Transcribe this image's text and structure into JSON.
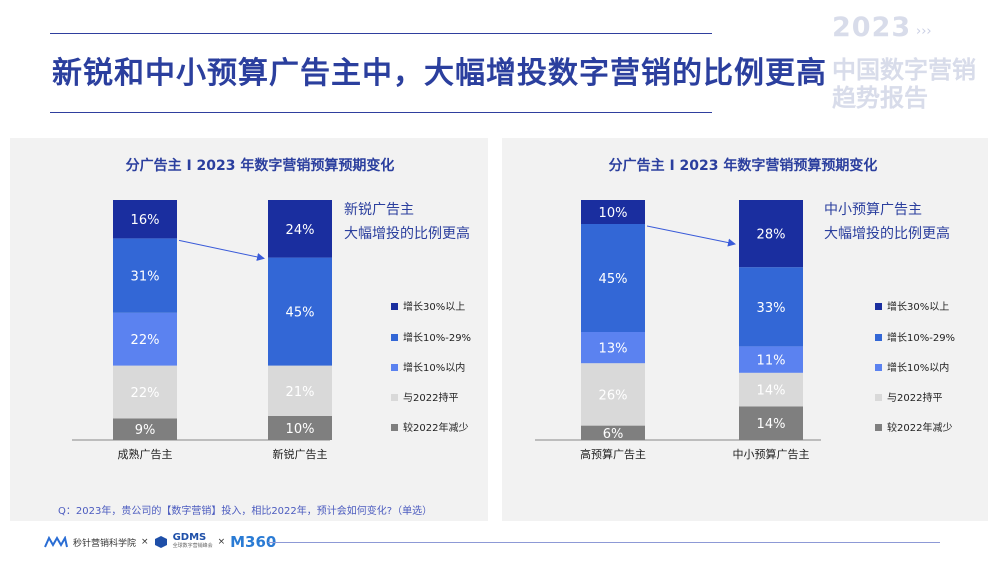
{
  "title": "新锐和中小预算广告主中，大幅增投数字营销的比例更高",
  "report": {
    "year": "2023",
    "arrows": "›››",
    "line1": "中国数字营销",
    "line2": "趋势报告"
  },
  "colors": {
    "grow30": "#1a2e9f",
    "grow10_29": "#3367d6",
    "grow_under10": "#5b82f0",
    "flat": "#d9d9d9",
    "decrease": "#7f7f7f",
    "title": "#2b3f9e",
    "arrow": "#3a5bd9"
  },
  "legend": {
    "labels": [
      "增长30%以上",
      "增长10%-29%",
      "增长10%以内",
      "与2022持平",
      "较2022年减少"
    ]
  },
  "chart_data": [
    {
      "type": "bar",
      "stacked": true,
      "title": "分广告主 I 2023 年数字营销预算预期变化",
      "categories": [
        "成熟广告主",
        "新锐广告主"
      ],
      "series": [
        {
          "name": "较2022年减少",
          "values": [
            9,
            10
          ]
        },
        {
          "name": "与2022持平",
          "values": [
            22,
            21
          ]
        },
        {
          "name": "增长10%以内",
          "values": [
            22,
            0
          ]
        },
        {
          "name": "增长10%-29%",
          "values": [
            31,
            45
          ]
        },
        {
          "name": "增长30%以上",
          "values": [
            16,
            24
          ]
        }
      ],
      "annotation": [
        "新锐广告主",
        "大幅增投的比例更高"
      ],
      "legend_position": "right"
    },
    {
      "type": "bar",
      "stacked": true,
      "title": "分广告主 I 2023 年数字营销预算预期变化",
      "categories": [
        "高预算广告主",
        "中小预算广告主"
      ],
      "series": [
        {
          "name": "较2022年减少",
          "values": [
            6,
            14
          ]
        },
        {
          "name": "与2022持平",
          "values": [
            26,
            14
          ]
        },
        {
          "name": "增长10%以内",
          "values": [
            13,
            11
          ]
        },
        {
          "name": "增长10%-29%",
          "values": [
            45,
            33
          ]
        },
        {
          "name": "增长30%以上",
          "values": [
            10,
            28
          ]
        }
      ],
      "annotation": [
        "中小预算广告主",
        "大幅增投的比例更高"
      ],
      "legend_position": "right"
    }
  ],
  "footnote": "Q：2023年，贵公司的【数字营销】投入，相比2022年，预计会如何变化?（单选）",
  "footer": {
    "logo1": "秒针营销科学院",
    "sep": "×",
    "logo2": "GDMS",
    "logo2_sub": "全球数字营销峰会",
    "logo3": "M360"
  }
}
